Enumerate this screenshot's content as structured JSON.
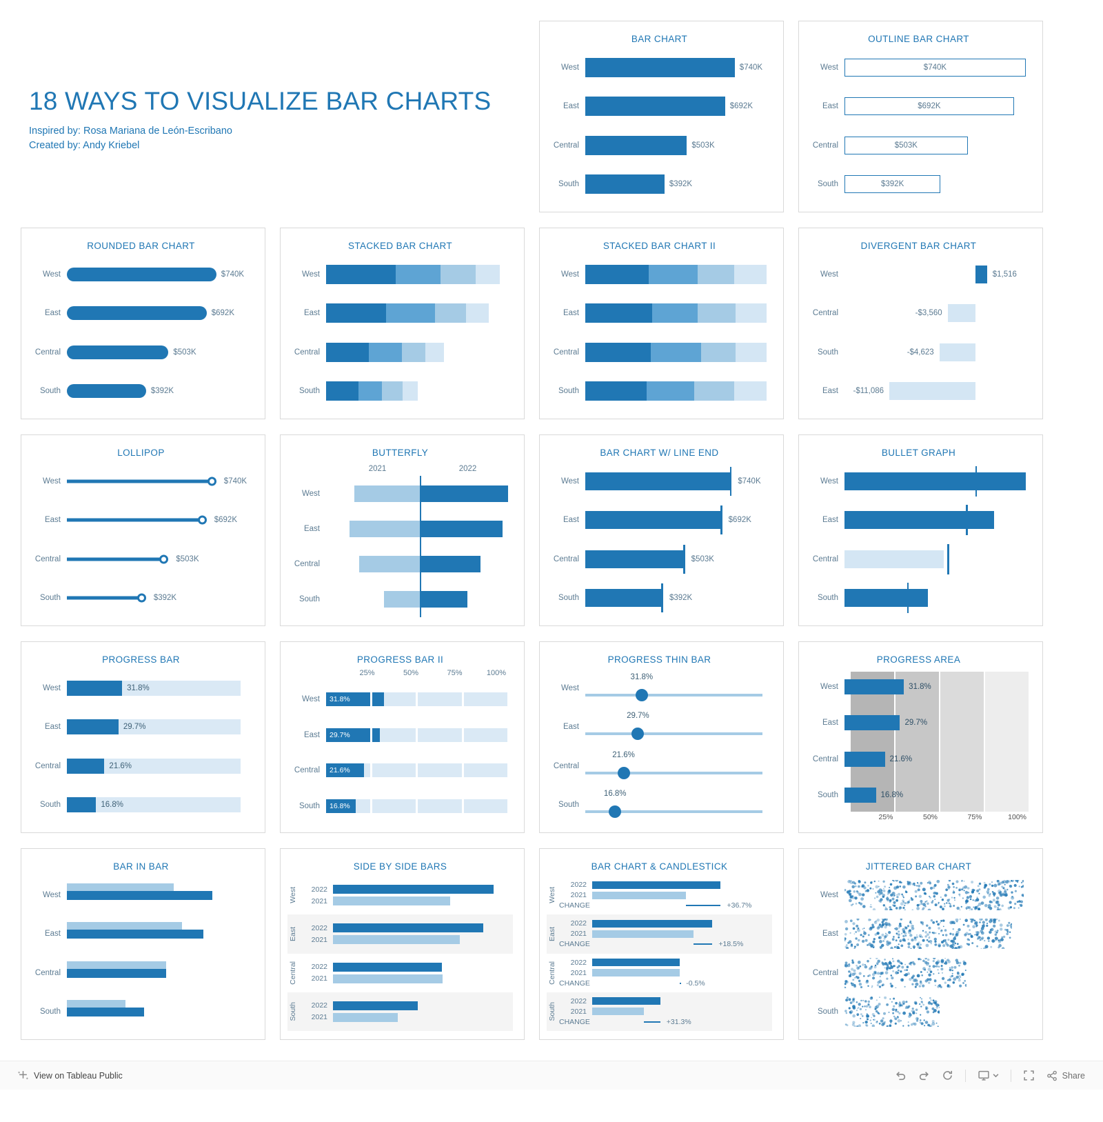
{
  "page": {
    "title": "18 WAYS TO VISUALIZE BAR CHARTS",
    "subtitle1": "Inspired by: Rosa Mariana de León-Escribano",
    "subtitle2": "Created by: Andy Kriebel"
  },
  "colors": {
    "primary": "#2077B4",
    "medium": "#5EA4D4",
    "light": "#A5CBE5",
    "lighter": "#D4E6F4",
    "track": "#DAE9F5",
    "label": "#5C7B92",
    "band_row": "#F4F4F4"
  },
  "regions": [
    "West",
    "East",
    "Central",
    "South"
  ],
  "footer": {
    "view": "View on Tableau Public",
    "share": "Share",
    "icons": [
      "tableau-logo",
      "undo",
      "redo",
      "reset",
      "device-layout",
      "fullscreen",
      "share"
    ]
  },
  "chart_data": [
    {
      "id": "bar",
      "type": "bar",
      "variant": "plain",
      "title": "BAR CHART",
      "categories": [
        "West",
        "East",
        "Central",
        "South"
      ],
      "values": [
        740,
        692,
        503,
        392
      ],
      "labels": [
        "$740K",
        "$692K",
        "$503K",
        "$392K"
      ],
      "unit": "USD thousands"
    },
    {
      "id": "outline",
      "type": "bar",
      "variant": "outline",
      "title": "OUTLINE BAR CHART",
      "categories": [
        "West",
        "East",
        "Central",
        "South"
      ],
      "values": [
        740,
        692,
        503,
        392
      ],
      "labels": [
        "$740K",
        "$692K",
        "$503K",
        "$392K"
      ]
    },
    {
      "id": "rounded",
      "type": "bar",
      "variant": "rounded",
      "title": "ROUNDED BAR CHART",
      "categories": [
        "West",
        "East",
        "Central",
        "South"
      ],
      "values": [
        740,
        692,
        503,
        392
      ],
      "labels": [
        "$740K",
        "$692K",
        "$503K",
        "$392K"
      ]
    },
    {
      "id": "stacked",
      "type": "bar",
      "variant": "stacked",
      "title": "STACKED BAR CHART",
      "categories": [
        "West",
        "East",
        "Central",
        "South"
      ],
      "totals": [
        740,
        692,
        503,
        392
      ],
      "segment_fractions": [
        [
          0.4,
          0.26,
          0.2,
          0.14
        ],
        [
          0.37,
          0.3,
          0.19,
          0.14
        ],
        [
          0.36,
          0.28,
          0.2,
          0.16
        ],
        [
          0.35,
          0.26,
          0.22,
          0.17
        ]
      ]
    },
    {
      "id": "stacked100",
      "type": "bar",
      "variant": "stacked-100",
      "title": "STACKED BAR CHART II",
      "categories": [
        "West",
        "East",
        "Central",
        "South"
      ],
      "segment_fractions": [
        [
          0.35,
          0.27,
          0.2,
          0.18
        ],
        [
          0.37,
          0.25,
          0.21,
          0.17
        ],
        [
          0.36,
          0.28,
          0.19,
          0.17
        ],
        [
          0.34,
          0.26,
          0.22,
          0.18
        ]
      ]
    },
    {
      "id": "divergent",
      "type": "bar",
      "variant": "divergent",
      "title": "DIVERGENT BAR CHART",
      "categories": [
        "West",
        "Central",
        "South",
        "East"
      ],
      "values": [
        1516,
        -3560,
        -4623,
        -11086
      ],
      "labels": [
        "$1,516",
        "-$3,560",
        "-$4,623",
        "-$11,086"
      ],
      "zero_axis_fraction": 0.7
    },
    {
      "id": "lollipop",
      "type": "bar",
      "variant": "lollipop",
      "title": "LOLLIPOP",
      "categories": [
        "West",
        "East",
        "Central",
        "South"
      ],
      "values": [
        740,
        692,
        503,
        392
      ],
      "labels": [
        "$740K",
        "$692K",
        "$503K",
        "$392K"
      ]
    },
    {
      "id": "butterfly",
      "type": "bar",
      "variant": "butterfly",
      "title": "BUTTERFLY",
      "categories": [
        "West",
        "East",
        "Central",
        "South"
      ],
      "series": [
        {
          "name": "2021",
          "values": [
            541,
            584,
            505,
            299
          ]
        },
        {
          "name": "2022",
          "values": [
            740,
            692,
            503,
            392
          ]
        }
      ]
    },
    {
      "id": "lineend",
      "type": "bar",
      "variant": "line-end",
      "title": "BAR CHART W/ LINE END",
      "categories": [
        "West",
        "East",
        "Central",
        "South"
      ],
      "values": [
        740,
        692,
        503,
        392
      ],
      "labels": [
        "$740K",
        "$692K",
        "$503K",
        "$392K"
      ]
    },
    {
      "id": "bullet",
      "type": "bar",
      "variant": "bullet",
      "title": "BULLET GRAPH",
      "categories": [
        "West",
        "East",
        "Central",
        "South"
      ],
      "bar_fractions": [
        0.97,
        0.8,
        0.53,
        0.445
      ],
      "target_fractions": [
        0.7,
        0.65,
        0.55,
        0.335
      ],
      "below_target": [
        false,
        false,
        true,
        false
      ]
    },
    {
      "id": "progress",
      "type": "bar",
      "variant": "progress",
      "title": "PROGRESS BAR",
      "categories": [
        "West",
        "East",
        "Central",
        "South"
      ],
      "values": [
        31.8,
        29.7,
        21.6,
        16.8
      ],
      "labels": [
        "31.8%",
        "29.7%",
        "21.6%",
        "16.8%"
      ],
      "max": 100
    },
    {
      "id": "progress2",
      "type": "bar",
      "variant": "progress-segmented",
      "title": "PROGRESS BAR II",
      "categories": [
        "West",
        "East",
        "Central",
        "South"
      ],
      "values": [
        31.8,
        29.7,
        21.6,
        16.8
      ],
      "labels": [
        "31.8%",
        "29.7%",
        "21.6%",
        "16.8%"
      ],
      "axis": [
        "25%",
        "50%",
        "75%",
        "100%"
      ],
      "max": 100
    },
    {
      "id": "progressthin",
      "type": "bar",
      "variant": "progress-thin",
      "title": "PROGRESS THIN BAR",
      "categories": [
        "West",
        "East",
        "Central",
        "South"
      ],
      "values": [
        31.8,
        29.7,
        21.6,
        16.8
      ],
      "labels": [
        "31.8%",
        "29.7%",
        "21.6%",
        "16.8%"
      ],
      "max": 100
    },
    {
      "id": "progressarea",
      "type": "bar",
      "variant": "progress-area",
      "title": "PROGRESS AREA",
      "categories": [
        "West",
        "East",
        "Central",
        "South"
      ],
      "values": [
        31.8,
        29.7,
        21.6,
        16.8
      ],
      "labels": [
        "31.8%",
        "29.7%",
        "21.6%",
        "16.8%"
      ],
      "axis": [
        "25%",
        "50%",
        "75%",
        "100%"
      ],
      "max": 100,
      "band_colors": [
        "#B5B5B5",
        "#C7C7C7",
        "#DBDBDB",
        "#EDEDED"
      ]
    },
    {
      "id": "barinbar",
      "type": "bar",
      "variant": "bar-in-bar",
      "title": "BAR IN BAR",
      "categories": [
        "West",
        "East",
        "Central",
        "South"
      ],
      "series": [
        {
          "name": "2021",
          "values": [
            541,
            584,
            505,
            299
          ]
        },
        {
          "name": "2022",
          "values": [
            740,
            692,
            503,
            392
          ]
        }
      ]
    },
    {
      "id": "sidebyside",
      "type": "bar",
      "variant": "side-by-side",
      "title": "SIDE BY SIDE BARS",
      "categories": [
        "West",
        "East",
        "Central",
        "South"
      ],
      "series": [
        {
          "name": "2022",
          "values": [
            740,
            692,
            503,
            392
          ]
        },
        {
          "name": "2021",
          "values": [
            541,
            584,
            505,
            299
          ]
        }
      ]
    },
    {
      "id": "candlestick",
      "type": "bar",
      "variant": "bar-candlestick",
      "title": "BAR CHART & CANDLESTICK",
      "categories": [
        "West",
        "East",
        "Central",
        "South"
      ],
      "row_labels": [
        "2022",
        "2021",
        "CHANGE"
      ],
      "series": [
        {
          "name": "2022",
          "values": [
            740,
            692,
            503,
            392
          ]
        },
        {
          "name": "2021",
          "values": [
            541,
            584,
            505,
            299
          ]
        }
      ],
      "change_labels": [
        "+36.7%",
        "+18.5%",
        "-0.5%",
        "+31.3%"
      ]
    },
    {
      "id": "jittered",
      "type": "bar",
      "variant": "jittered",
      "title": "JITTERED BAR CHART",
      "categories": [
        "West",
        "East",
        "Central",
        "South"
      ],
      "values": [
        740,
        692,
        503,
        392
      ]
    }
  ]
}
